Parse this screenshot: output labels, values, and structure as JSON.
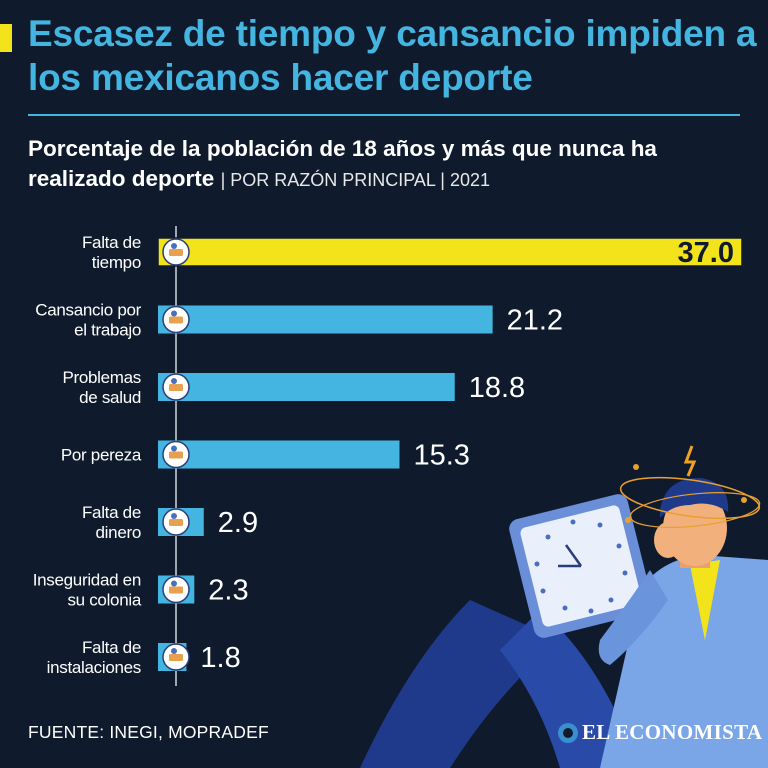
{
  "header": {
    "title": "Escasez de tiempo y cansancio impiden a los mexicanos hacer deporte",
    "subtitle_bold": "Porcentaje de la población de 18 años y más que nunca ha realizado deporte",
    "subtitle_note": "| POR RAZÓN PRINCIPAL | 2021"
  },
  "chart_data": {
    "type": "bar",
    "orientation": "horizontal",
    "title": "Porcentaje de la población de 18 años y más que nunca ha realizado deporte",
    "categories": [
      [
        "Falta de",
        "tiempo"
      ],
      [
        "Cansancio por",
        "el trabajo"
      ],
      [
        "Problemas",
        "de salud"
      ],
      [
        "Por pereza"
      ],
      [
        "Falta de",
        "dinero"
      ],
      [
        "Inseguridad en",
        "su colonia"
      ],
      [
        "Falta de",
        "instalaciones"
      ]
    ],
    "values": [
      37.0,
      21.2,
      18.8,
      15.3,
      2.9,
      2.3,
      1.8
    ],
    "value_labels": [
      "37.0",
      "21.2",
      "18.8",
      "15.3",
      "2.9",
      "2.3",
      "1.8"
    ],
    "icons": [
      "clock-sleep-icon",
      "desk-work-icon",
      "sick-person-icon",
      "couch-icon",
      "money-icon",
      "thief-icon",
      "stadium-icon"
    ],
    "xlim": [
      0,
      37
    ],
    "xlabel": "",
    "ylabel": "",
    "highlight_index": 0
  },
  "colors": {
    "background": "#0f1b2d",
    "accent": "#f2e31b",
    "bar": "#43b5e0",
    "title": "#43b5e0"
  },
  "footer": {
    "source": "FUENTE: INEGI, MOPRADEF",
    "brand": "EL ECONOMISTA"
  }
}
